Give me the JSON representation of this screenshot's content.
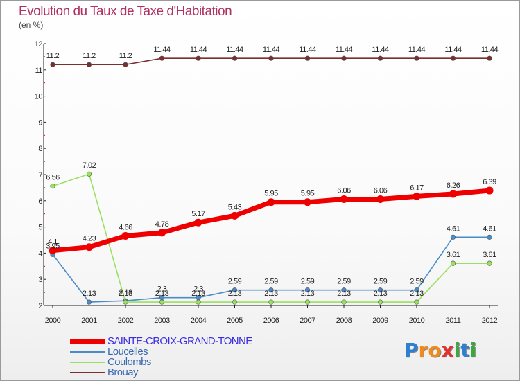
{
  "header": {
    "title": "Evolution du Taux de Taxe d'Habitation",
    "subtitle": "(en %)"
  },
  "chart_data": {
    "type": "line",
    "title": "Evolution du Taux de Taxe d'Habitation",
    "subtitle": "(en %)",
    "xlabel": "",
    "ylabel": "",
    "x": [
      2000,
      2001,
      2002,
      2003,
      2004,
      2005,
      2006,
      2007,
      2008,
      2009,
      2010,
      2011,
      2012
    ],
    "ylim": [
      2,
      12
    ],
    "yticks": [
      2,
      3,
      4,
      5,
      6,
      7,
      8,
      9,
      10,
      11,
      12
    ],
    "grid": false,
    "legend_position": "bottom-left",
    "series": [
      {
        "name": "SAINTE-CROIX-GRAND-TONNE",
        "color": "#ee0000",
        "labels": [
          "4.1",
          "4.23",
          "4.66",
          "4.78",
          "5.17",
          "5.43",
          "5.95",
          "5.95",
          "6.06",
          "6.06",
          "6.17",
          "6.26",
          "6.39"
        ],
        "values": [
          4.1,
          4.23,
          4.66,
          4.78,
          5.17,
          5.43,
          5.95,
          5.95,
          6.06,
          6.06,
          6.17,
          6.26,
          6.39
        ]
      },
      {
        "name": "Loucelles",
        "color": "#4a8cc7",
        "labels": [
          "3.95",
          "2.13",
          "2.18",
          "2.3",
          "2.3",
          "2.59",
          "2.59",
          "2.59",
          "2.59",
          "2.59",
          "2.59",
          "4.61",
          "4.61"
        ],
        "values": [
          3.95,
          2.13,
          2.18,
          2.3,
          2.3,
          2.59,
          2.59,
          2.59,
          2.59,
          2.59,
          2.59,
          4.61,
          4.61
        ]
      },
      {
        "name": "Coulombs",
        "color": "#99e060",
        "labels": [
          "6.56",
          "7.02",
          "2.13",
          "2.13",
          "2.13",
          "2.13",
          "2.13",
          "2.13",
          "2.13",
          "2.13",
          "2.13",
          "3.61",
          "3.61"
        ],
        "values": [
          6.56,
          7.02,
          2.13,
          2.13,
          2.13,
          2.13,
          2.13,
          2.13,
          2.13,
          2.13,
          2.13,
          3.61,
          3.61
        ]
      },
      {
        "name": "Brouay",
        "color": "#7a2e2e",
        "labels": [
          "11.2",
          "11.2",
          "11.2",
          "11.44",
          "11.44",
          "11.44",
          "11.44",
          "11.44",
          "11.44",
          "11.44",
          "11.44",
          "11.44",
          "11.44"
        ],
        "values": [
          11.2,
          11.2,
          11.2,
          11.44,
          11.44,
          11.44,
          11.44,
          11.44,
          11.44,
          11.44,
          11.44,
          11.44,
          11.44
        ]
      }
    ]
  },
  "logo": {
    "letters": [
      "P",
      "r",
      "o",
      "x",
      "i",
      "t",
      "i"
    ],
    "colors": [
      "#2e7fd1",
      "#f08a1c",
      "#f08a1c",
      "#e03030",
      "#3aa83a",
      "#2e7fd1",
      "#3aa83a"
    ]
  }
}
